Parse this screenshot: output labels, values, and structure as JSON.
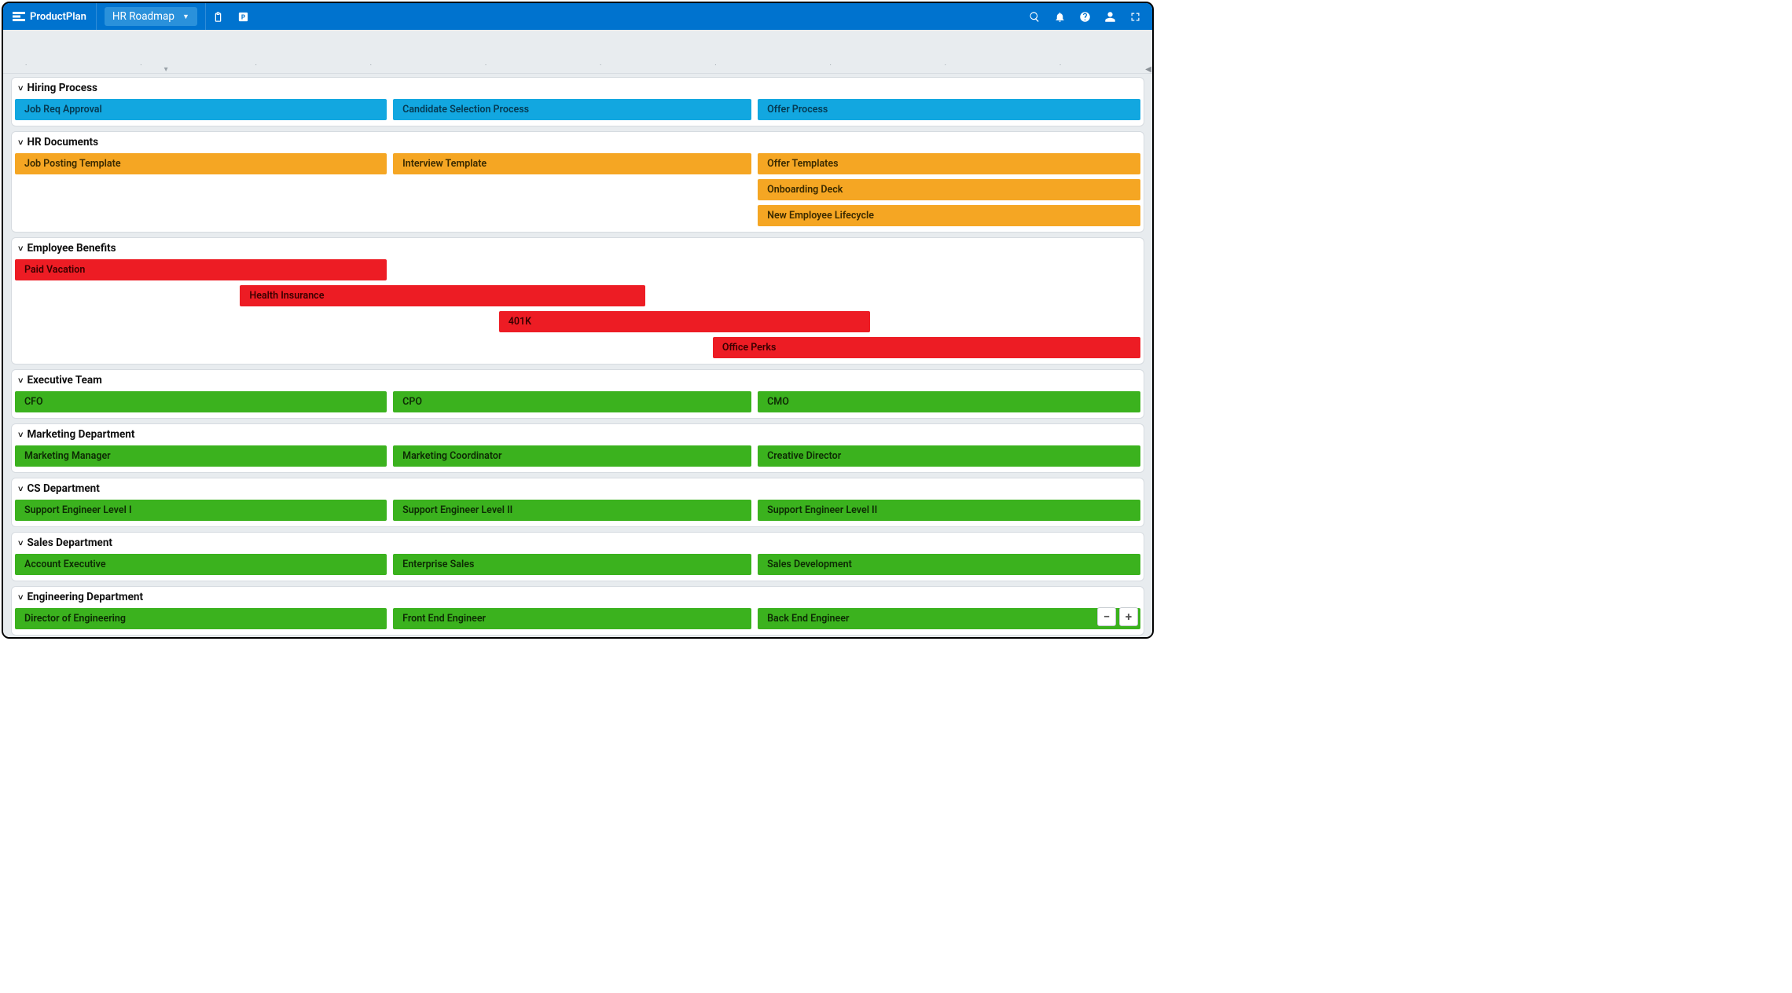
{
  "colors": {
    "topbar": "#0073cf",
    "topbar_hi": "#2a91db",
    "canvas_bg": "#e8ecef",
    "lane_border": "#d6dbe0",
    "bar_blue": "#12a7e0",
    "bar_orange": "#f5a623",
    "bar_red": "#ed1c24",
    "bar_green": "#3bb21e"
  },
  "brand": {
    "name": "ProductPlan"
  },
  "roadmap_selector": {
    "label": "HR Roadmap"
  },
  "toolbar_left_icons": [
    "clipboard-icon",
    "parking-icon"
  ],
  "toolbar_right_icons": [
    "search-icon",
    "bell-icon",
    "help-icon",
    "user-icon",
    "fullscreen-icon"
  ],
  "timeline": {
    "tick_positions_pct": [
      2,
      12,
      22,
      32,
      42,
      52,
      62,
      72,
      82,
      92
    ],
    "drop_caret_pct": 14
  },
  "canvas": {
    "content_width_pct": 100,
    "col_gap_pct": 0.6
  },
  "lanes": [
    {
      "title": "Hiring Process",
      "bar_color": "#12a7e0",
      "text_color": "#063a52",
      "rows": [
        [
          {
            "label": "Job Req Approval",
            "start_pct": 0,
            "width_pct": 33.0
          },
          {
            "label": "Candidate Selection Process",
            "start_pct": 33.6,
            "width_pct": 31.8
          },
          {
            "label": "Offer Process",
            "start_pct": 66.0,
            "width_pct": 34.0
          }
        ]
      ]
    },
    {
      "title": "HR Documents",
      "bar_color": "#f5a623",
      "text_color": "#3a2a00",
      "rows": [
        [
          {
            "label": "Job Posting Template",
            "start_pct": 0,
            "width_pct": 33.0
          },
          {
            "label": "Interview Template",
            "start_pct": 33.6,
            "width_pct": 31.8
          },
          {
            "label": "Offer Templates",
            "start_pct": 66.0,
            "width_pct": 34.0
          }
        ],
        [
          {
            "label": "Onboarding Deck",
            "start_pct": 66.0,
            "width_pct": 34.0
          }
        ],
        [
          {
            "label": "New Employee Lifecycle",
            "start_pct": 66.0,
            "width_pct": 34.0
          }
        ]
      ]
    },
    {
      "title": "Employee Benefits",
      "bar_color": "#ed1c24",
      "text_color": "#3a0000",
      "rows": [
        [
          {
            "label": "Paid Vacation",
            "start_pct": 0,
            "width_pct": 33.0
          }
        ],
        [
          {
            "label": "Health Insurance",
            "start_pct": 20.0,
            "width_pct": 36.0
          }
        ],
        [
          {
            "label": "401K",
            "start_pct": 43.0,
            "width_pct": 33.0
          }
        ],
        [
          {
            "label": "Office Perks",
            "start_pct": 62.0,
            "width_pct": 38.0
          }
        ]
      ]
    },
    {
      "title": "Executive Team",
      "bar_color": "#3bb21e",
      "text_color": "#0d2b04",
      "rows": [
        [
          {
            "label": "CFO",
            "start_pct": 0,
            "width_pct": 33.0
          },
          {
            "label": "CPO",
            "start_pct": 33.6,
            "width_pct": 31.8
          },
          {
            "label": "CMO",
            "start_pct": 66.0,
            "width_pct": 34.0
          }
        ]
      ]
    },
    {
      "title": "Marketing Department",
      "bar_color": "#3bb21e",
      "text_color": "#0d2b04",
      "rows": [
        [
          {
            "label": "Marketing Manager",
            "start_pct": 0,
            "width_pct": 33.0
          },
          {
            "label": "Marketing Coordinator",
            "start_pct": 33.6,
            "width_pct": 31.8
          },
          {
            "label": "Creative Director",
            "start_pct": 66.0,
            "width_pct": 34.0
          }
        ]
      ]
    },
    {
      "title": "CS Department",
      "bar_color": "#3bb21e",
      "text_color": "#0d2b04",
      "rows": [
        [
          {
            "label": "Support Engineer Level I",
            "start_pct": 0,
            "width_pct": 33.0
          },
          {
            "label": "Support Engineer Level II",
            "start_pct": 33.6,
            "width_pct": 31.8
          },
          {
            "label": "Support Engineer Level II",
            "start_pct": 66.0,
            "width_pct": 34.0
          }
        ]
      ]
    },
    {
      "title": "Sales Department",
      "bar_color": "#3bb21e",
      "text_color": "#0d2b04",
      "rows": [
        [
          {
            "label": "Account Executive",
            "start_pct": 0,
            "width_pct": 33.0
          },
          {
            "label": "Enterprise Sales",
            "start_pct": 33.6,
            "width_pct": 31.8
          },
          {
            "label": "Sales Development",
            "start_pct": 66.0,
            "width_pct": 34.0
          }
        ]
      ]
    },
    {
      "title": "Engineering Department",
      "bar_color": "#3bb21e",
      "text_color": "#0d2b04",
      "rows": [
        [
          {
            "label": "Director of Engineering",
            "start_pct": 0,
            "width_pct": 33.0
          },
          {
            "label": "Front End Engineer",
            "start_pct": 33.6,
            "width_pct": 31.8
          },
          {
            "label": "Back End Engineer",
            "start_pct": 66.0,
            "width_pct": 34.0
          }
        ]
      ]
    }
  ],
  "zoom": {
    "minus": "−",
    "plus": "+"
  }
}
